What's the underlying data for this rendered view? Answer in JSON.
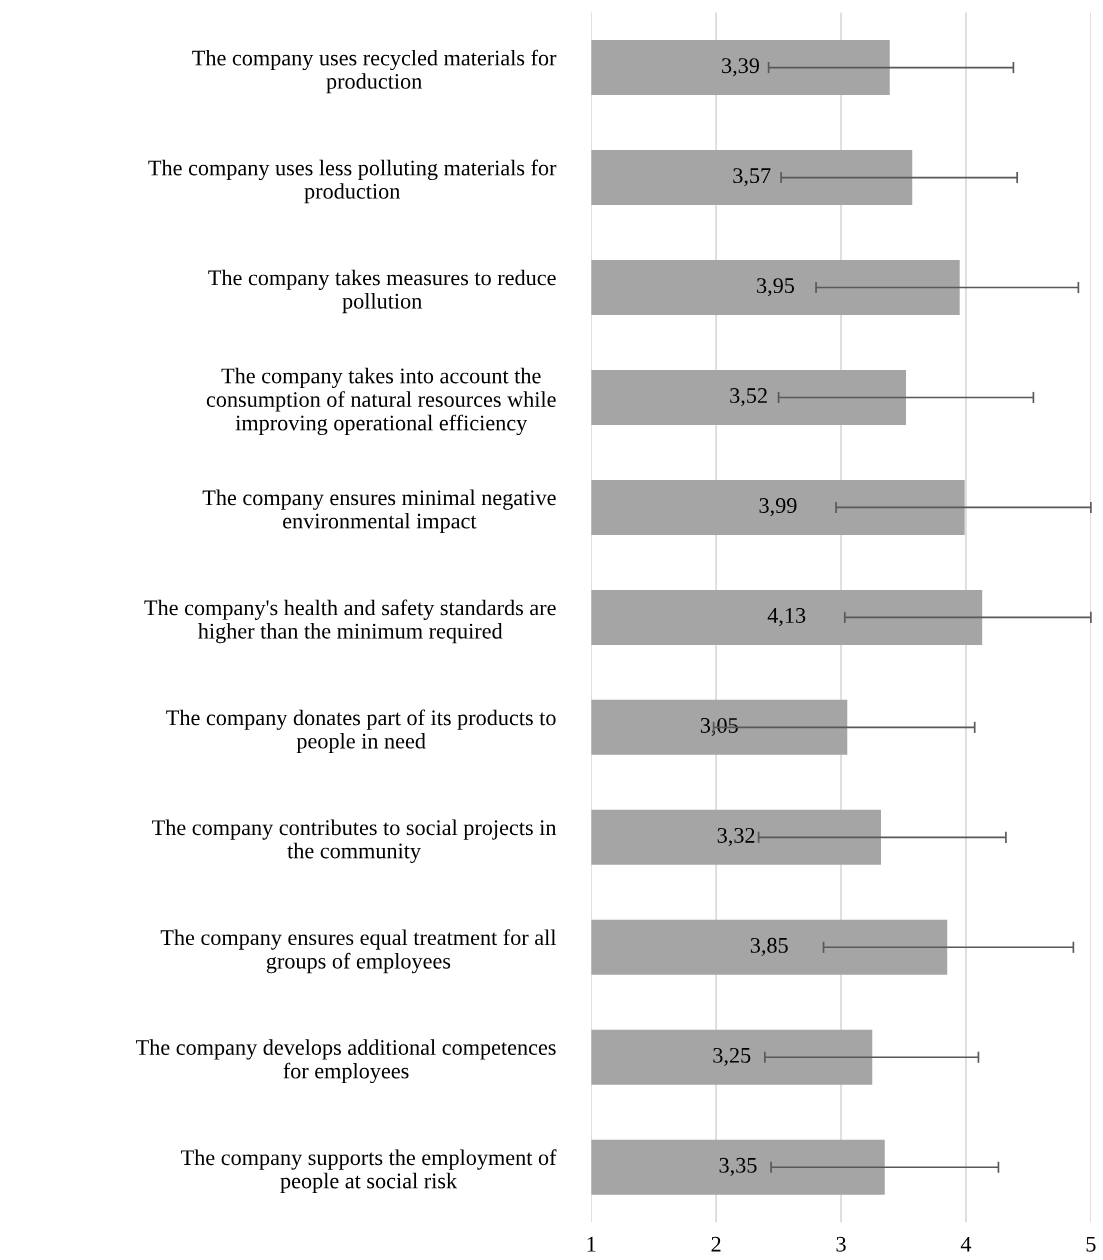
{
  "chart_data": {
    "type": "bar",
    "orientation": "horizontal",
    "categories": [
      "The company uses recycled materials for\nproduction",
      "The company uses less polluting materials for\nproduction",
      "The company takes measures to reduce\npollution",
      "The company takes into account the\nconsumption of natural resources while\nimproving operational efficiency",
      "The company ensures minimal negative\nenvironmental impact",
      "The company's health and safety standards are\nhigher than the minimum required",
      "The company donates part of its products to\npeople in need",
      "The company contributes to social projects in\nthe community",
      "The company ensures equal treatment for all\ngroups of employees",
      "The company develops additional competences\nfor employees",
      "The company supports the employment of\npeople at social risk"
    ],
    "values": [
      3.39,
      3.57,
      3.95,
      3.52,
      3.99,
      4.13,
      3.05,
      3.32,
      3.85,
      3.25,
      3.35
    ],
    "value_labels": [
      "3,39",
      "3,57",
      "3,95",
      "3,52",
      "3,99",
      "4,13",
      "3,05",
      "3,32",
      "3,85",
      "3,25",
      "3,35"
    ],
    "errors": [
      [
        2.42,
        4.38
      ],
      [
        2.52,
        4.41
      ],
      [
        2.8,
        4.9
      ],
      [
        2.5,
        4.54
      ],
      [
        2.96,
        5.0
      ],
      [
        3.03,
        5.0
      ],
      [
        1.98,
        4.07
      ],
      [
        2.34,
        4.32
      ],
      [
        2.86,
        4.86
      ],
      [
        2.39,
        4.1
      ],
      [
        2.44,
        4.26
      ]
    ],
    "color": "#a5a5a5",
    "xlim": [
      1,
      5
    ],
    "xticks": [
      1,
      2,
      3,
      4,
      5
    ],
    "grid": "x",
    "legend": false
  }
}
